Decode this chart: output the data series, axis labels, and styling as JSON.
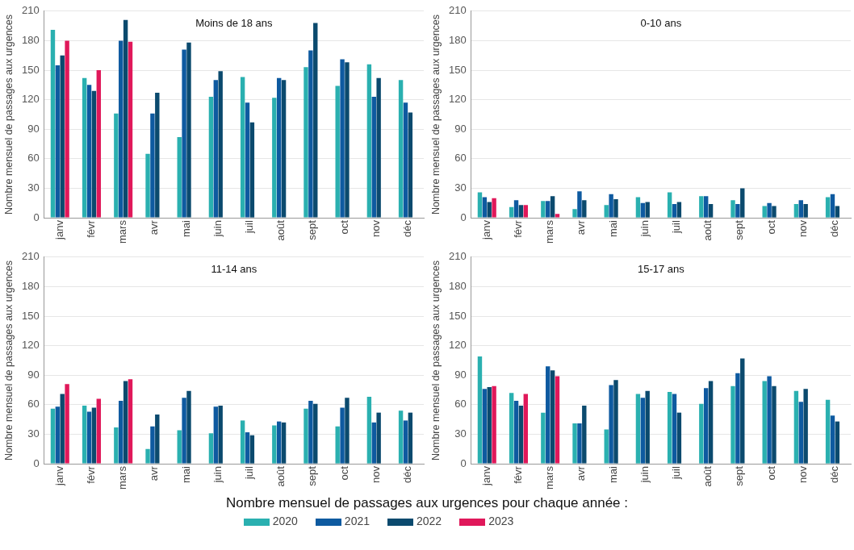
{
  "chart_data": [
    {
      "type": "bar",
      "title": "Moins de 18 ans",
      "ylabel": "Nombre mensuel de passages aux urgences",
      "categories": [
        "janv",
        "févr",
        "mars",
        "avr",
        "mai",
        "juin",
        "juil",
        "août",
        "sept",
        "oct",
        "nov",
        "déc"
      ],
      "ylim": [
        0,
        210
      ],
      "yticks": [
        0,
        30,
        60,
        90,
        120,
        150,
        180,
        210
      ],
      "grid": "y",
      "legend": "bottom",
      "legend_title": "Nombre mensuel de passages aux urgences pour chaque année :",
      "series": [
        {
          "name": "2020",
          "color": "#2ab0b0",
          "values": [
            191,
            142,
            106,
            65,
            82,
            123,
            143,
            122,
            153,
            134,
            156,
            140
          ]
        },
        {
          "name": "2021",
          "color": "#0e5aa0",
          "values": [
            155,
            135,
            180,
            106,
            171,
            140,
            117,
            142,
            170,
            161,
            123,
            117
          ]
        },
        {
          "name": "2022",
          "color": "#0b4a6e",
          "values": [
            165,
            129,
            201,
            127,
            178,
            149,
            97,
            140,
            198,
            158,
            142,
            107
          ]
        },
        {
          "name": "2023",
          "color": "#e0185a",
          "values": [
            180,
            150,
            179,
            null,
            null,
            null,
            null,
            null,
            null,
            null,
            null,
            null
          ]
        }
      ]
    },
    {
      "type": "bar",
      "title": "0-10 ans",
      "ylabel": "Nombre mensuel de passages aux urgences",
      "categories": [
        "janv",
        "févr",
        "mars",
        "avr",
        "mai",
        "juin",
        "juil",
        "août",
        "sept",
        "oct",
        "nov",
        "déc"
      ],
      "ylim": [
        0,
        210
      ],
      "yticks": [
        0,
        30,
        60,
        90,
        120,
        150,
        180,
        210
      ],
      "grid": "y",
      "legend": "bottom",
      "series": [
        {
          "name": "2020",
          "color": "#2ab0b0",
          "values": [
            26,
            11,
            17,
            9,
            13,
            21,
            26,
            22,
            18,
            12,
            14,
            21
          ]
        },
        {
          "name": "2021",
          "color": "#0e5aa0",
          "values": [
            21,
            18,
            17,
            27,
            24,
            15,
            14,
            22,
            14,
            15,
            18,
            24
          ]
        },
        {
          "name": "2022",
          "color": "#0b4a6e",
          "values": [
            16,
            13,
            22,
            18,
            19,
            16,
            16,
            14,
            30,
            12,
            14,
            12
          ]
        },
        {
          "name": "2023",
          "color": "#e0185a",
          "values": [
            20,
            13,
            4,
            null,
            null,
            null,
            null,
            null,
            null,
            null,
            null,
            null
          ]
        }
      ]
    },
    {
      "type": "bar",
      "title": "11-14 ans",
      "ylabel": "Nombre mensuel de passages aux urgences",
      "categories": [
        "janv",
        "févr",
        "mars",
        "avr",
        "mai",
        "juin",
        "juil",
        "août",
        "sept",
        "oct",
        "nov",
        "déc"
      ],
      "ylim": [
        0,
        210
      ],
      "yticks": [
        0,
        30,
        60,
        90,
        120,
        150,
        180,
        210
      ],
      "grid": "y",
      "legend": "bottom",
      "series": [
        {
          "name": "2020",
          "color": "#2ab0b0",
          "values": [
            56,
            59,
            37,
            15,
            34,
            31,
            44,
            39,
            56,
            38,
            68,
            54
          ]
        },
        {
          "name": "2021",
          "color": "#0e5aa0",
          "values": [
            58,
            53,
            64,
            38,
            67,
            58,
            32,
            43,
            64,
            57,
            42,
            44
          ]
        },
        {
          "name": "2022",
          "color": "#0b4a6e",
          "values": [
            71,
            57,
            84,
            50,
            74,
            59,
            29,
            42,
            61,
            67,
            52,
            52
          ]
        },
        {
          "name": "2023",
          "color": "#e0185a",
          "values": [
            81,
            66,
            86,
            null,
            null,
            null,
            null,
            null,
            null,
            null,
            null,
            null
          ]
        }
      ]
    },
    {
      "type": "bar",
      "title": "15-17 ans",
      "ylabel": "Nombre mensuel de passages aux urgences",
      "categories": [
        "janv",
        "févr",
        "mars",
        "avr",
        "mai",
        "juin",
        "juil",
        "août",
        "sept",
        "oct",
        "nov",
        "déc"
      ],
      "ylim": [
        0,
        210
      ],
      "yticks": [
        0,
        30,
        60,
        90,
        120,
        150,
        180,
        210
      ],
      "grid": "y",
      "legend": "bottom",
      "series": [
        {
          "name": "2020",
          "color": "#2ab0b0",
          "values": [
            109,
            72,
            52,
            41,
            35,
            71,
            73,
            61,
            79,
            84,
            74,
            65
          ]
        },
        {
          "name": "2021",
          "color": "#0e5aa0",
          "values": [
            76,
            64,
            99,
            41,
            80,
            67,
            71,
            77,
            92,
            89,
            63,
            49
          ]
        },
        {
          "name": "2022",
          "color": "#0b4a6e",
          "values": [
            78,
            59,
            95,
            59,
            85,
            74,
            52,
            84,
            107,
            79,
            76,
            43
          ]
        },
        {
          "name": "2023",
          "color": "#e0185a",
          "values": [
            79,
            71,
            89,
            null,
            null,
            null,
            null,
            null,
            null,
            null,
            null,
            null
          ]
        }
      ]
    }
  ]
}
